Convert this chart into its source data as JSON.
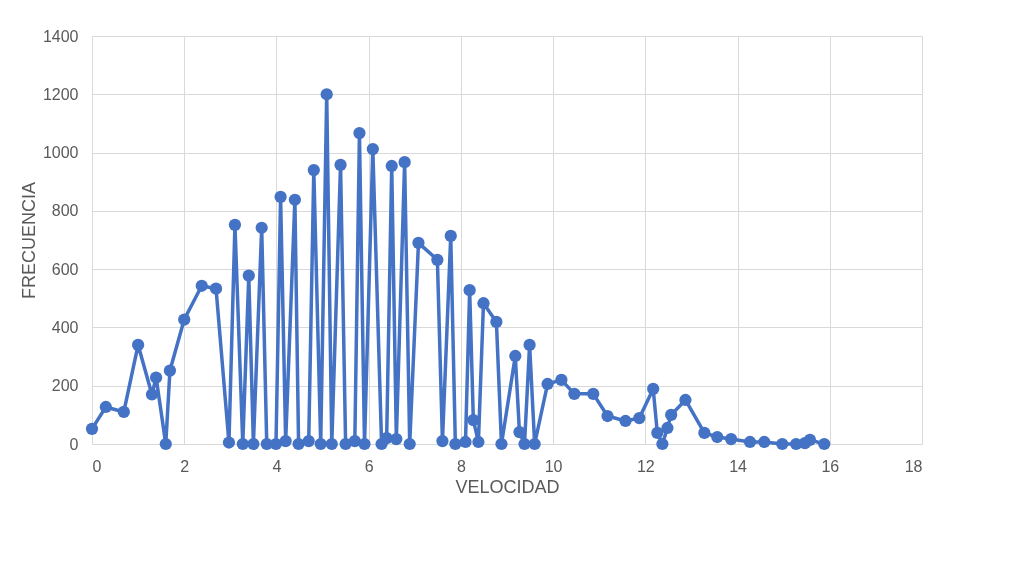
{
  "chart_data": {
    "type": "line",
    "xlabel": "VELOCIDAD",
    "ylabel": "FRECUENCIA",
    "x": [
      0,
      0.3,
      0.69,
      1.0,
      1.3,
      1.39,
      1.6,
      1.69,
      2.0,
      2.38,
      2.69,
      2.97,
      3.1,
      3.27,
      3.4,
      3.5,
      3.68,
      3.79,
      3.99,
      4.09,
      4.2,
      4.4,
      4.48,
      4.7,
      4.81,
      4.96,
      5.09,
      5.2,
      5.39,
      5.5,
      5.7,
      5.8,
      5.91,
      6.09,
      6.28,
      6.39,
      6.5,
      6.6,
      6.78,
      6.89,
      7.08,
      7.49,
      7.6,
      7.78,
      7.88,
      8.1,
      8.19,
      8.27,
      8.38,
      8.49,
      8.77,
      8.88,
      9.18,
      9.27,
      9.38,
      9.49,
      9.6,
      9.88,
      10.18,
      10.46,
      10.87,
      11.18,
      11.57,
      11.87,
      12.17,
      12.26,
      12.37,
      12.48,
      12.56,
      12.87,
      13.28,
      13.56,
      13.86,
      14.27,
      14.58,
      14.97,
      15.27,
      15.46,
      15.57,
      15.88
    ],
    "series": [
      {
        "color": "#4472c4",
        "values": [
          52,
          127,
          110,
          340,
          170,
          228,
          0,
          252,
          427,
          543,
          533,
          5,
          752,
          0,
          578,
          0,
          742,
          0,
          0,
          848,
          10,
          838,
          0,
          10,
          940,
          0,
          1200,
          0,
          958,
          0,
          10,
          1067,
          0,
          1012,
          0,
          20,
          954,
          17,
          967,
          0,
          690,
          632,
          10,
          714,
          0,
          7,
          528,
          82,
          7,
          483,
          419,
          0,
          302,
          41,
          0,
          340,
          0,
          206,
          220,
          172,
          172,
          96,
          79,
          89,
          189,
          38,
          0,
          55,
          100,
          151,
          38,
          24,
          17,
          7,
          7,
          0,
          0,
          3,
          14,
          0
        ]
      }
    ],
    "xlim": [
      0,
      18
    ],
    "xticks": [
      0,
      2,
      4,
      6,
      8,
      10,
      12,
      14,
      16,
      18
    ],
    "ylim": [
      0,
      1400
    ],
    "yticks": [
      0,
      200,
      400,
      600,
      800,
      1000,
      1200,
      1400
    ],
    "grid": true,
    "marker": "circle",
    "line_style": "solid"
  }
}
